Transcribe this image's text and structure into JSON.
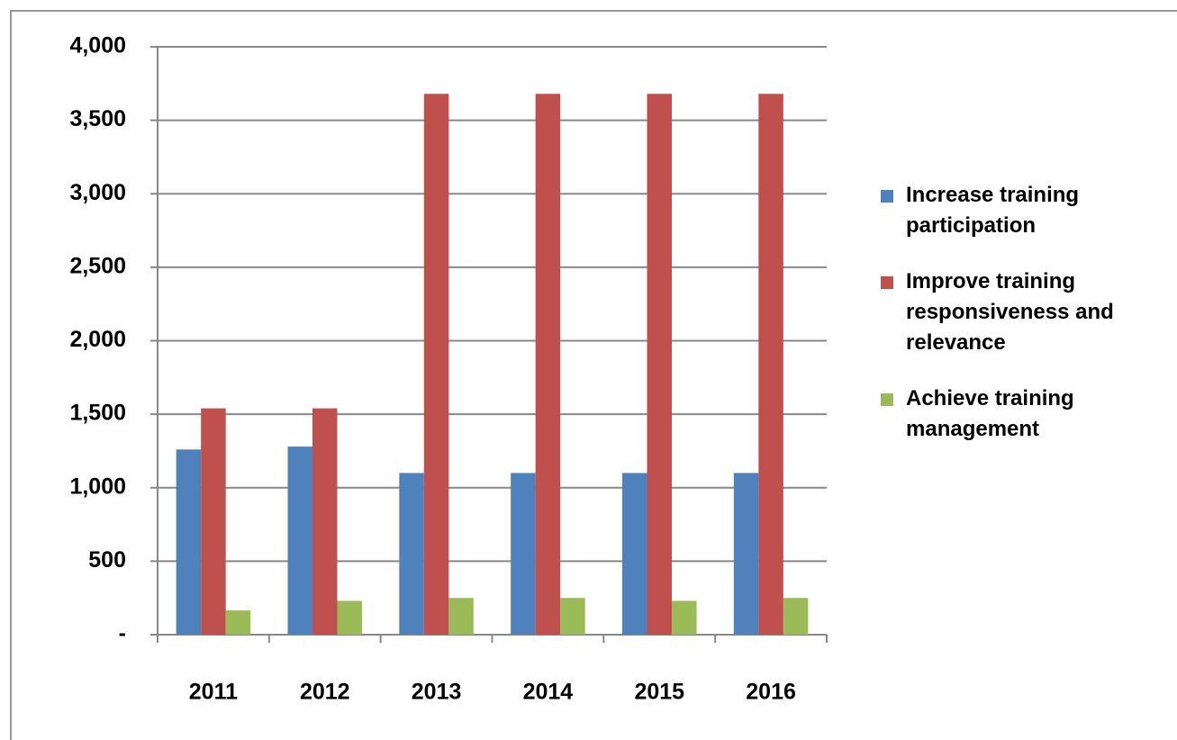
{
  "chart_data": {
    "type": "bar",
    "categories": [
      "2011",
      "2012",
      "2013",
      "2014",
      "2015",
      "2016"
    ],
    "series": [
      {
        "name": "Increase training participation",
        "color": "#4f81bd",
        "values": [
          1260,
          1280,
          1100,
          1100,
          1100,
          1100
        ]
      },
      {
        "name": "Improve training responsiveness and relevance",
        "color": "#c0504d",
        "values": [
          1540,
          1540,
          3680,
          3680,
          3680,
          3680
        ]
      },
      {
        "name": "Achieve training management",
        "color": "#9bbb59",
        "values": [
          165,
          230,
          250,
          250,
          230,
          250
        ]
      }
    ],
    "ylim": [
      0,
      4000
    ],
    "yticks": [
      {
        "value": 0,
        "label": "-"
      },
      500,
      {
        "value": 1000,
        "label": "1,000"
      },
      {
        "value": 1500,
        "label": "1,500"
      },
      {
        "value": 2000,
        "label": "2,000"
      },
      {
        "value": 2500,
        "label": "2,500"
      },
      {
        "value": 3000,
        "label": "3,000"
      },
      {
        "value": 3500,
        "label": "3,500"
      },
      {
        "value": 4000,
        "label": "4,000"
      }
    ],
    "grid": true,
    "legend": "right"
  }
}
